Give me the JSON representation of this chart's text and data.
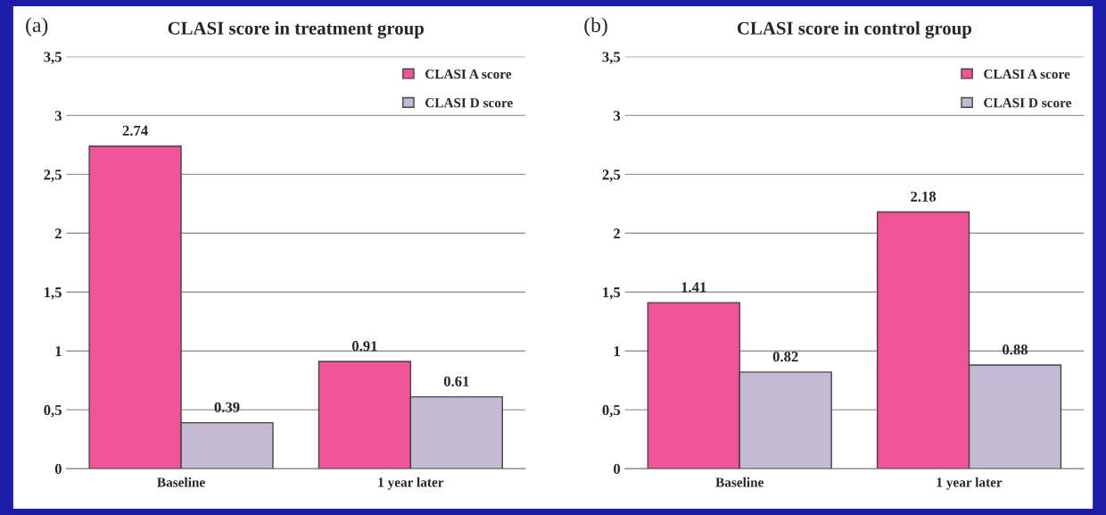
{
  "chart_data": [
    {
      "type": "bar",
      "title": "CLASI score in treatment group",
      "categories": [
        "Baseline",
        "1 year later"
      ],
      "series": [
        {
          "name": "CLASI A score",
          "color": "#ef5598",
          "values": [
            2.74,
            0.91
          ]
        },
        {
          "name": "CLASI D score",
          "color": "#c6b9d5",
          "values": [
            0.39,
            0.61
          ]
        }
      ],
      "ylim": [
        0,
        3.5
      ],
      "yticks": [
        0,
        {
          "value": 0.5,
          "label": "0,5"
        },
        1,
        {
          "value": 1.5,
          "label": "1,5"
        },
        2,
        {
          "value": 2.5,
          "label": "2,5"
        },
        3,
        {
          "value": 3.5,
          "label": "3,5"
        }
      ],
      "grid": "y",
      "legend": "top right",
      "data_labels": true,
      "annotations": [
        "(a)"
      ]
    },
    {
      "type": "bar",
      "title": "CLASI score in control group",
      "categories": [
        "Baseline",
        "1 year later"
      ],
      "series": [
        {
          "name": "CLASI A score",
          "color": "#ef5598",
          "values": [
            1.41,
            2.18
          ]
        },
        {
          "name": "CLASI D score",
          "color": "#c6b9d5",
          "values": [
            0.82,
            0.88
          ]
        }
      ],
      "ylim": [
        0,
        3.5
      ],
      "yticks": [
        0,
        {
          "value": 0.5,
          "label": "0,5"
        },
        1,
        {
          "value": 1.5,
          "label": "1,5"
        },
        2,
        {
          "value": 2.5,
          "label": "2,5"
        },
        3,
        {
          "value": 3.5,
          "label": "3,5"
        }
      ],
      "grid": "y",
      "legend": "top right",
      "data_labels": true,
      "annotations": [
        "(b)"
      ]
    }
  ]
}
